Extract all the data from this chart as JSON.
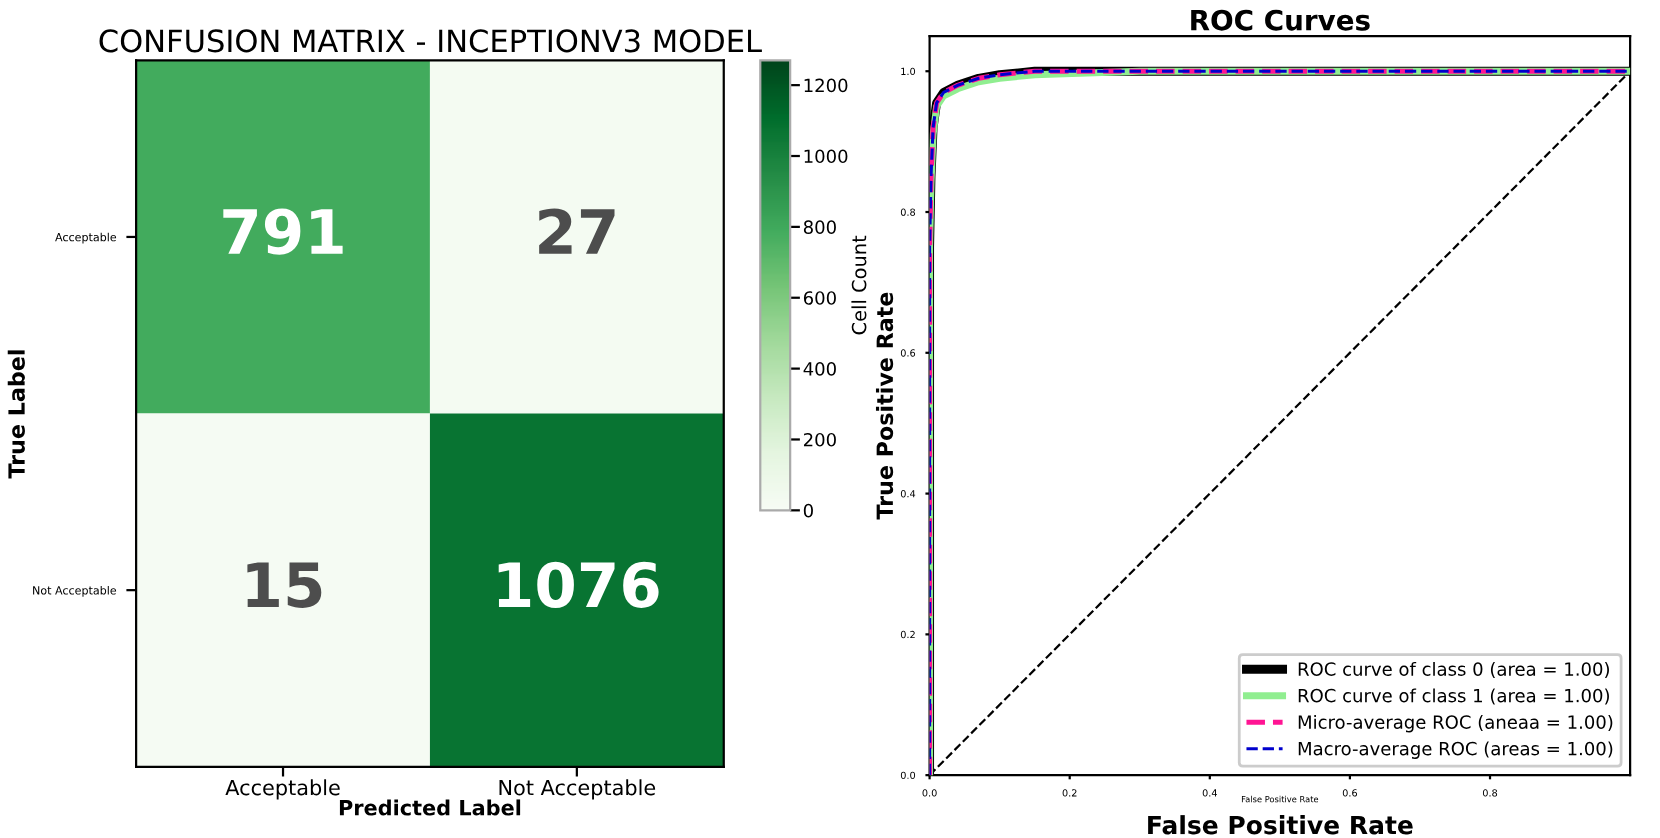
{
  "chart_data": [
    {
      "type": "heatmap",
      "title": "CONFUSION MATRIX - INCEPTIONV3 MODEL",
      "xlabel": "Predicted Label",
      "ylabel": "True Label",
      "clabel": "Cell Count",
      "categories": [
        "Acceptable",
        "Not Acceptable"
      ],
      "y_categories": [
        "Acceptable",
        "Not Acceptable"
      ],
      "cells": [
        [
          791,
          27
        ],
        [
          15,
          1076
        ]
      ],
      "clim": [
        0,
        1270
      ],
      "cticks": [
        0,
        200,
        400,
        600,
        800,
        1000,
        1200
      ],
      "data_labels": true
    },
    {
      "type": "line",
      "title": "ROC Curves",
      "xlabel": "False Positive Rate",
      "ylabel": "True Positive Rate",
      "xlim": [
        0,
        1.0
      ],
      "ylim": [
        0,
        1.05
      ],
      "xticks": [
        {
          "value": 0,
          "label": "0.0"
        },
        {
          "value": 0.2,
          "label": "0.2"
        },
        {
          "value": 0.4,
          "label": "0.4"
        },
        {
          "value": 0.6,
          "label": "0.6"
        },
        {
          "value": 0.8,
          "label": "0.8"
        }
      ],
      "yticks": [
        {
          "value": 0,
          "label": "0.0"
        },
        {
          "value": 0.2,
          "label": "0.2"
        },
        {
          "value": 0.4,
          "label": "0.4"
        },
        {
          "value": 0.6,
          "label": "0.6"
        },
        {
          "value": 0.8,
          "label": "0.8"
        },
        {
          "value": 1.0,
          "label": "1.0"
        }
      ],
      "legend": "bottom right",
      "grid": false,
      "annotations": [
        "False Positive Rate"
      ],
      "series": [
        {
          "name": "ROC curve of class 0 (area = 1.00)",
          "color": "#000000",
          "line_style": "solid",
          "x": [
            0,
            0,
            0.002,
            0.005,
            0.01,
            0.02,
            0.04,
            0.07,
            0.1,
            0.15,
            0.3,
            0.6,
            1.0
          ],
          "values": [
            0,
            0.75,
            0.85,
            0.92,
            0.955,
            0.97,
            0.98,
            0.99,
            0.995,
            1.0,
            1.0,
            1.0,
            1.0
          ]
        },
        {
          "name": "ROC curve of class 1 (area = 1.00)",
          "color": "#90ee90",
          "line_style": "solid",
          "x": [
            0,
            0,
            0.002,
            0.005,
            0.01,
            0.02,
            0.04,
            0.07,
            0.1,
            0.15,
            0.3,
            0.6,
            1.0
          ],
          "values": [
            0,
            0.75,
            0.84,
            0.91,
            0.95,
            0.965,
            0.975,
            0.985,
            0.99,
            0.995,
            1.0,
            1.0,
            1.0
          ]
        },
        {
          "name": "Micro-average ROC (aneaa = 1.00)",
          "color": "#ff1493",
          "line_style": "dashed",
          "x": [
            0,
            0,
            0.002,
            0.005,
            0.01,
            0.02,
            0.04,
            0.07,
            0.1,
            0.15,
            0.3,
            0.6,
            1.0
          ],
          "values": [
            0,
            0.75,
            0.85,
            0.92,
            0.955,
            0.97,
            0.98,
            0.99,
            0.995,
            1.0,
            1.0,
            1.0,
            1.0
          ]
        },
        {
          "name": "Macro-average ROC (areas = 1.00)",
          "color": "#0000cd",
          "line_style": "dashed",
          "x": [
            0,
            0,
            0.002,
            0.005,
            0.01,
            0.02,
            0.04,
            0.07,
            0.1,
            0.15,
            0.3,
            0.6,
            1.0
          ],
          "values": [
            0,
            0.75,
            0.85,
            0.92,
            0.955,
            0.97,
            0.98,
            0.99,
            0.995,
            1.0,
            1.0,
            1.0,
            1.0
          ]
        },
        {
          "color": "#000000",
          "line_style": "dashed",
          "x": [
            0,
            1.0
          ],
          "values": [
            0,
            1.0
          ]
        }
      ]
    }
  ]
}
